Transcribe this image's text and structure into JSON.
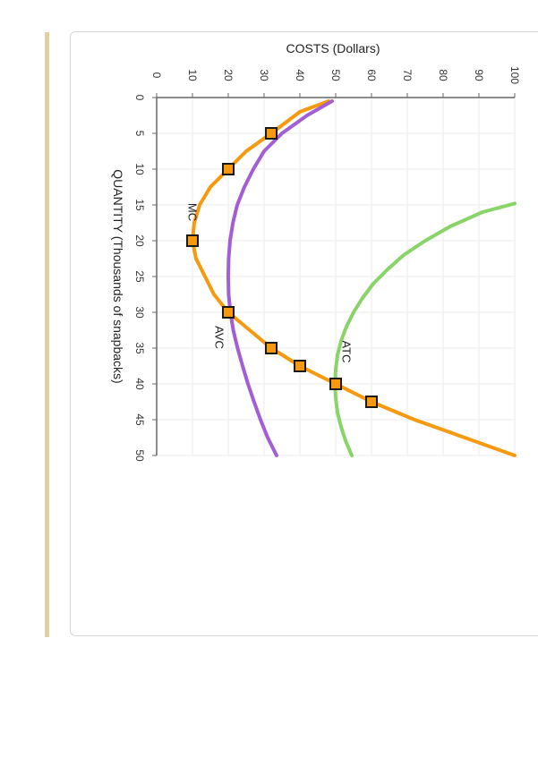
{
  "colors": {
    "accent_bar": "#e0cfa0",
    "grid": "#ebebeb",
    "axis": "#666666",
    "marker_border": "#1a1a1a"
  },
  "chart_data": {
    "type": "line",
    "orientation": "rotated-90-clockwise",
    "title": "",
    "xlabel": "QUANTITY (Thousands of snapbacks)",
    "ylabel": "COSTS (Dollars)",
    "xlim": [
      0,
      50
    ],
    "ylim": [
      0,
      100
    ],
    "x_ticks": [
      0,
      5,
      10,
      15,
      20,
      25,
      30,
      35,
      40,
      45,
      50
    ],
    "y_ticks": [
      0,
      10,
      20,
      30,
      40,
      50,
      60,
      70,
      80,
      90,
      100
    ],
    "grid": true,
    "series": [
      {
        "name": "MC",
        "color": "#f7990f",
        "line_width": 4,
        "x": [
          0.5,
          2,
          5,
          7.5,
          10,
          12.5,
          15,
          17.5,
          20,
          22.5,
          25,
          27.5,
          30,
          32.5,
          35,
          37.5,
          40,
          42.5,
          45,
          47.5,
          50
        ],
        "y": [
          48,
          40,
          32,
          25,
          20,
          15,
          12,
          10.5,
          10,
          11,
          13.5,
          16,
          20,
          26,
          32,
          40,
          50,
          60,
          72,
          86,
          100
        ],
        "markers": [
          {
            "x": 5,
            "y": 32
          },
          {
            "x": 10,
            "y": 20
          },
          {
            "x": 20,
            "y": 10
          },
          {
            "x": 30,
            "y": 20
          },
          {
            "x": 35,
            "y": 32
          },
          {
            "x": 37.5,
            "y": 40
          },
          {
            "x": 40,
            "y": 50
          },
          {
            "x": 42.5,
            "y": 60
          }
        ],
        "label_at": {
          "x": 16,
          "y": 10
        }
      },
      {
        "name": "AVC",
        "color": "#a35ed6",
        "line_width": 4,
        "x": [
          0.5,
          2.5,
          5,
          7.5,
          10,
          12.5,
          15,
          17.5,
          20,
          22.5,
          25,
          27.5,
          30,
          32.5,
          35,
          37.5,
          40,
          42.5,
          45,
          47.5,
          50
        ],
        "y": [
          49,
          42,
          35,
          30,
          27,
          24.5,
          22.5,
          21.3,
          20.5,
          20.1,
          20,
          20.1,
          20.6,
          21.4,
          22.6,
          24,
          25.5,
          27.2,
          29,
          31,
          33.5
        ],
        "label_at": {
          "x": 33.5,
          "y": 17.5
        }
      },
      {
        "name": "ATC",
        "color": "#88d468",
        "line_width": 4,
        "x": [
          14.8,
          16,
          18,
          20,
          22,
          24,
          26,
          28,
          30,
          32,
          34,
          36,
          38,
          40,
          42,
          44,
          46,
          48,
          50
        ],
        "y": [
          100,
          91,
          82,
          75,
          69,
          64.5,
          60.5,
          57.5,
          55,
          53,
          51.5,
          50.5,
          50,
          49.8,
          50,
          50.5,
          51.5,
          52.8,
          54.5
        ],
        "label_at": {
          "x": 35.5,
          "y": 53
        }
      }
    ]
  }
}
